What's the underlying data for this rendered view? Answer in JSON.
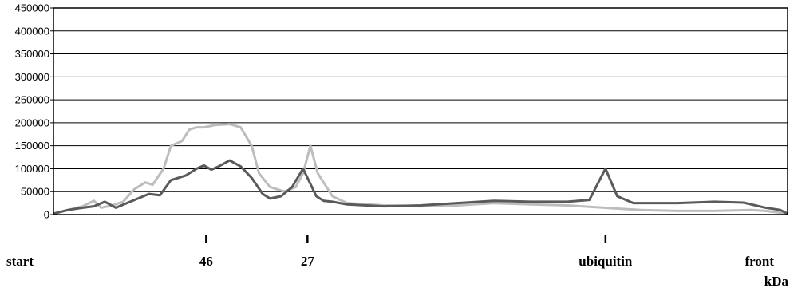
{
  "chart_data": {
    "type": "line",
    "ylim": [
      0,
      450000
    ],
    "yticks": [
      "0",
      "50000",
      "100000",
      "150000",
      "200000",
      "250000",
      "300000",
      "350000",
      "400000",
      "450000"
    ],
    "ytick_values": [
      0,
      50000,
      100000,
      150000,
      200000,
      250000,
      300000,
      350000,
      400000,
      450000
    ],
    "grid": true,
    "x_range": [
      0,
      100
    ],
    "markers": [
      {
        "label": "start",
        "x": 0,
        "tick": false
      },
      {
        "label": "46",
        "x": 20.8,
        "tick": true
      },
      {
        "label": "27",
        "x": 34.6,
        "tick": true
      },
      {
        "label": "ubiquitin",
        "x": 75.2,
        "tick": true
      },
      {
        "label": "front",
        "x": 100,
        "tick": false
      }
    ],
    "unit_label": "kDa",
    "series": [
      {
        "color": "#bdbdbd",
        "x": [
          0,
          2,
          4,
          5.5,
          6.5,
          8,
          9.5,
          11,
          12.5,
          13.5,
          15,
          16,
          17.5,
          18.5,
          19.5,
          20.5,
          22,
          24,
          25.5,
          27,
          28,
          29.5,
          31.5,
          33,
          34,
          35,
          36,
          38,
          40,
          45,
          50,
          55,
          60,
          65,
          70,
          75,
          80,
          85,
          90,
          95,
          97,
          100
        ],
        "values": [
          2000,
          10000,
          18000,
          30000,
          15000,
          20000,
          28000,
          55000,
          70000,
          65000,
          100000,
          150000,
          160000,
          185000,
          190000,
          190000,
          195000,
          197000,
          190000,
          150000,
          90000,
          60000,
          50000,
          60000,
          90000,
          150000,
          90000,
          40000,
          25000,
          20000,
          18000,
          20000,
          25000,
          22000,
          20000,
          15000,
          10000,
          8000,
          8000,
          10000,
          8000,
          2000
        ]
      },
      {
        "color": "#5a5a5a",
        "x": [
          0,
          2,
          4,
          5.5,
          7,
          8.5,
          10,
          11.5,
          13,
          14.5,
          16,
          18,
          19.5,
          20.5,
          21.5,
          22.5,
          24,
          25.5,
          27,
          28.5,
          29.5,
          31,
          32.5,
          34,
          35.8,
          36.8,
          38,
          40,
          45,
          50,
          55,
          60,
          65,
          70,
          73,
          75.2,
          76.8,
          79,
          85,
          90,
          94,
          97,
          99,
          100
        ],
        "values": [
          2000,
          10000,
          15000,
          18000,
          28000,
          15000,
          25000,
          35000,
          45000,
          42000,
          75000,
          85000,
          100000,
          107000,
          98000,
          105000,
          118000,
          105000,
          80000,
          45000,
          35000,
          40000,
          60000,
          100000,
          40000,
          30000,
          28000,
          22000,
          18000,
          20000,
          25000,
          30000,
          28000,
          28000,
          32000,
          100000,
          40000,
          25000,
          25000,
          28000,
          26000,
          15000,
          10000,
          2000
        ]
      }
    ]
  }
}
